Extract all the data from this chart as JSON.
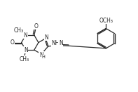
{
  "bg": "#ffffff",
  "lc": "#2a2a2a",
  "lw": 0.9,
  "fs": 5.5,
  "figw": 1.97,
  "figh": 1.31,
  "dpi": 100,
  "xlim": [
    0,
    10
  ],
  "ylim": [
    0,
    6.6
  ]
}
